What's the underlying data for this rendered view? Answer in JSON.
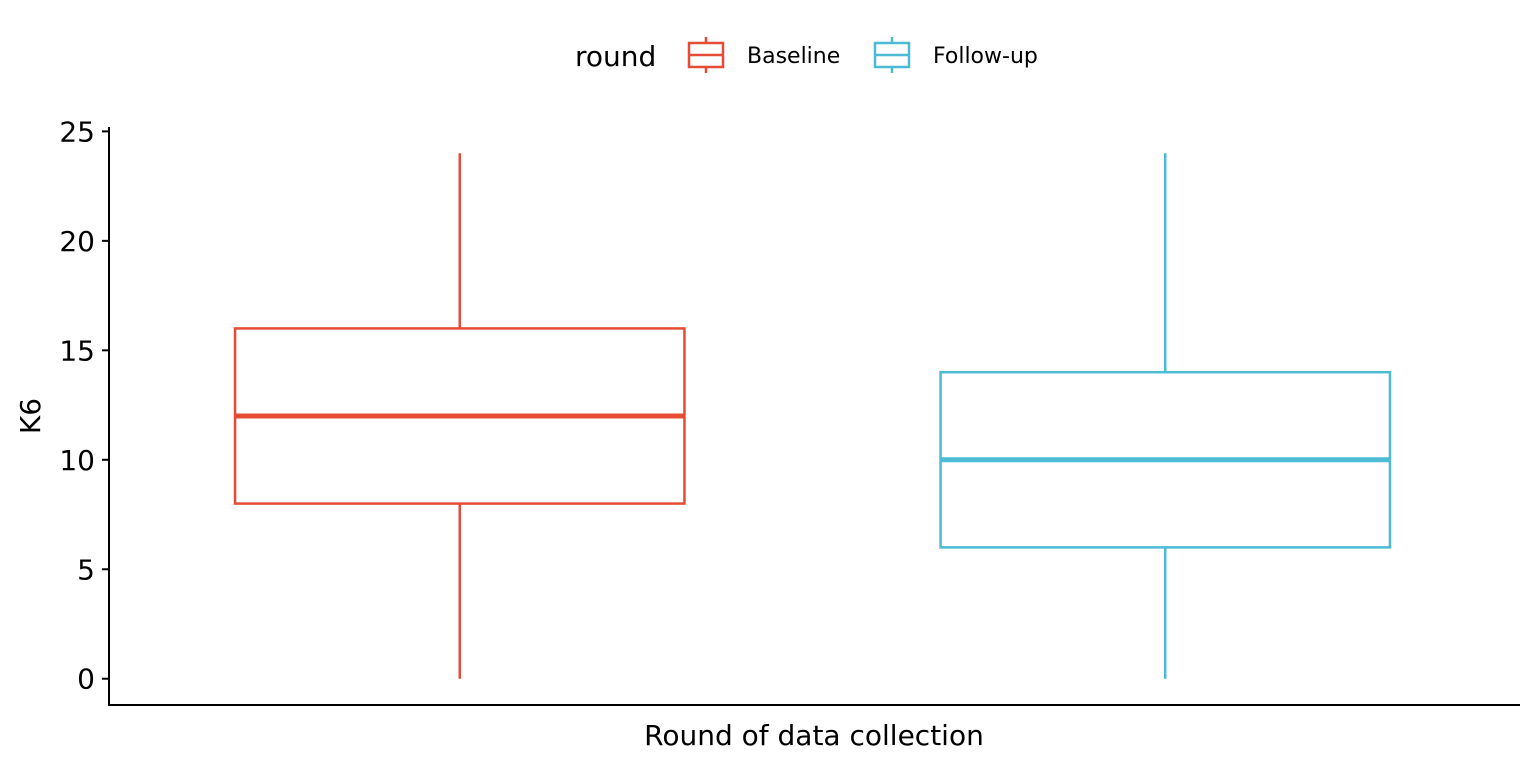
{
  "chart_data": {
    "type": "boxplot",
    "title": "",
    "xlabel": "Round of data collection",
    "ylabel": "K6",
    "ylim": [
      -1.2,
      25.2
    ],
    "yticks": [
      0,
      5,
      10,
      15,
      20,
      25
    ],
    "grid": false,
    "legend": {
      "title": "round",
      "position": "top"
    },
    "series": [
      {
        "name": "Baseline",
        "color": "#E64B35",
        "min": 0,
        "q1": 8,
        "median": 12,
        "q3": 16,
        "max": 24
      },
      {
        "name": "Follow-up",
        "color": "#4DBBD5",
        "min": 0,
        "q1": 6,
        "median": 10,
        "q3": 14,
        "max": 24
      }
    ]
  }
}
